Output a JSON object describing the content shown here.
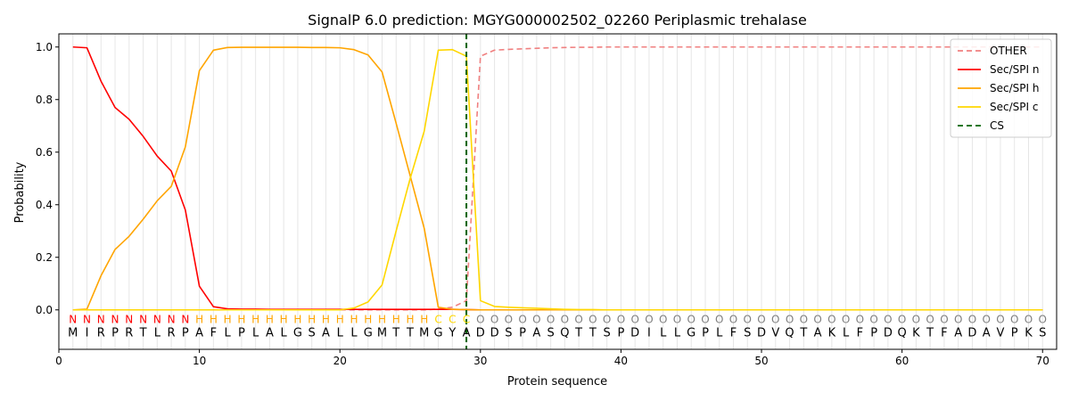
{
  "chart_data": {
    "type": "line",
    "title": "SignalP 6.0 prediction: MGYG000002502_02260 Periplasmic trehalase",
    "xlabel": "Protein sequence",
    "ylabel": "Probability",
    "xlim": [
      0,
      71
    ],
    "ylim": [
      -0.15,
      1.05
    ],
    "xticks": [
      0,
      10,
      20,
      30,
      40,
      50,
      60,
      70
    ],
    "yticks": [
      0.0,
      0.2,
      0.4,
      0.6,
      0.8,
      1.0
    ],
    "xtick_labels": [
      "0",
      "10",
      "20",
      "30",
      "40",
      "50",
      "60",
      "70"
    ],
    "ytick_labels": [
      "0.0",
      "0.2",
      "0.4",
      "0.6",
      "0.8",
      "1.0"
    ],
    "grid": "vertical lines at each residue",
    "legend_position": "top-right",
    "sequence": [
      "M",
      "I",
      "R",
      "P",
      "R",
      "T",
      "L",
      "R",
      "P",
      "A",
      "F",
      "L",
      "P",
      "L",
      "A",
      "L",
      "G",
      "S",
      "A",
      "L",
      "L",
      "G",
      "M",
      "T",
      "T",
      "M",
      "G",
      "Y",
      "A",
      "D",
      "D",
      "S",
      "P",
      "A",
      "S",
      "Q",
      "T",
      "T",
      "S",
      "P",
      "D",
      "I",
      "L",
      "L",
      "G",
      "P",
      "L",
      "F",
      "S",
      "D",
      "V",
      "Q",
      "T",
      "A",
      "K",
      "L",
      "F",
      "P",
      "D",
      "Q",
      "K",
      "T",
      "F",
      "A",
      "D",
      "A",
      "V",
      "P",
      "K",
      "S"
    ],
    "labels": [
      "N",
      "N",
      "N",
      "N",
      "N",
      "N",
      "N",
      "N",
      "N",
      "H",
      "H",
      "H",
      "H",
      "H",
      "H",
      "H",
      "H",
      "H",
      "H",
      "H",
      "H",
      "H",
      "H",
      "H",
      "H",
      "H",
      "C",
      "C",
      "C",
      "O",
      "O",
      "O",
      "O",
      "O",
      "O",
      "O",
      "O",
      "O",
      "O",
      "O",
      "O",
      "O",
      "O",
      "O",
      "O",
      "O",
      "O",
      "O",
      "O",
      "O",
      "O",
      "O",
      "O",
      "O",
      "O",
      "O",
      "O",
      "O",
      "O",
      "O",
      "O",
      "O",
      "O",
      "O",
      "O",
      "O",
      "O",
      "O",
      "O",
      "O"
    ],
    "label_colors": {
      "N": "#ff0000",
      "H": "#ffa500",
      "C": "#ffd700",
      "O": "#808080"
    },
    "series": [
      {
        "name": "OTHER",
        "color": "#f08080",
        "dash": "dashed",
        "values": [
          0,
          0,
          0,
          0,
          0,
          0,
          0,
          0,
          0,
          0,
          0,
          0,
          0,
          0,
          0,
          0,
          0,
          0,
          0,
          0,
          0,
          0,
          0,
          0,
          0,
          0,
          0.003,
          0.01,
          0.035,
          0.965,
          0.988,
          0.991,
          0.993,
          0.995,
          0.997,
          0.998,
          0.999,
          0.999,
          1,
          1,
          1,
          1,
          1,
          1,
          1,
          1,
          1,
          1,
          1,
          1,
          1,
          1,
          1,
          1,
          1,
          1,
          1,
          1,
          1,
          1,
          1,
          1,
          1,
          1,
          1,
          1,
          1,
          1,
          1,
          1
        ]
      },
      {
        "name": "Sec/SPI n",
        "color": "#ff0000",
        "dash": "solid",
        "values": [
          1.0,
          0.997,
          0.87,
          0.77,
          0.725,
          0.66,
          0.585,
          0.528,
          0.38,
          0.09,
          0.012,
          0.004,
          0.003,
          0.003,
          0.002,
          0.002,
          0.002,
          0.002,
          0.002,
          0.002,
          0.002,
          0.002,
          0.002,
          0.002,
          0.002,
          0.002,
          0.002,
          0.002,
          0.001,
          0,
          0,
          0,
          0,
          0,
          0,
          0,
          0,
          0,
          0,
          0,
          0,
          0,
          0,
          0,
          0,
          0,
          0,
          0,
          0,
          0,
          0,
          0,
          0,
          0,
          0,
          0,
          0,
          0,
          0,
          0,
          0,
          0,
          0,
          0,
          0,
          0,
          0,
          0,
          0,
          0
        ]
      },
      {
        "name": "Sec/SPI h",
        "color": "#ffa500",
        "dash": "solid",
        "values": [
          0,
          0.003,
          0.13,
          0.23,
          0.28,
          0.345,
          0.415,
          0.47,
          0.62,
          0.91,
          0.988,
          0.998,
          0.999,
          0.999,
          0.999,
          0.999,
          0.999,
          0.998,
          0.998,
          0.997,
          0.99,
          0.97,
          0.905,
          0.71,
          0.51,
          0.31,
          0.01,
          0.002,
          0.001,
          0,
          0,
          0,
          0,
          0,
          0,
          0,
          0,
          0,
          0,
          0,
          0,
          0,
          0,
          0,
          0,
          0,
          0,
          0,
          0,
          0,
          0,
          0,
          0,
          0,
          0,
          0,
          0,
          0,
          0,
          0,
          0,
          0,
          0,
          0,
          0,
          0,
          0,
          0,
          0,
          0
        ]
      },
      {
        "name": "Sec/SPI c",
        "color": "#ffd700",
        "dash": "solid",
        "values": [
          0,
          0,
          0,
          0,
          0,
          0,
          0,
          0,
          0,
          0,
          0,
          0,
          0,
          0,
          0,
          0,
          0,
          0,
          0,
          0,
          0.007,
          0.03,
          0.095,
          0.3,
          0.5,
          0.68,
          0.988,
          0.99,
          0.965,
          0.035,
          0.013,
          0.01,
          0.008,
          0.006,
          0.004,
          0.002,
          0.001,
          0.001,
          0,
          0,
          0,
          0,
          0,
          0,
          0,
          0,
          0,
          0,
          0,
          0,
          0,
          0,
          0,
          0,
          0,
          0,
          0,
          0,
          0,
          0,
          0,
          0,
          0,
          0,
          0,
          0,
          0,
          0,
          0,
          0
        ]
      },
      {
        "name": "CS",
        "color": "#006400",
        "dash": "dashed",
        "x": 29
      }
    ]
  }
}
